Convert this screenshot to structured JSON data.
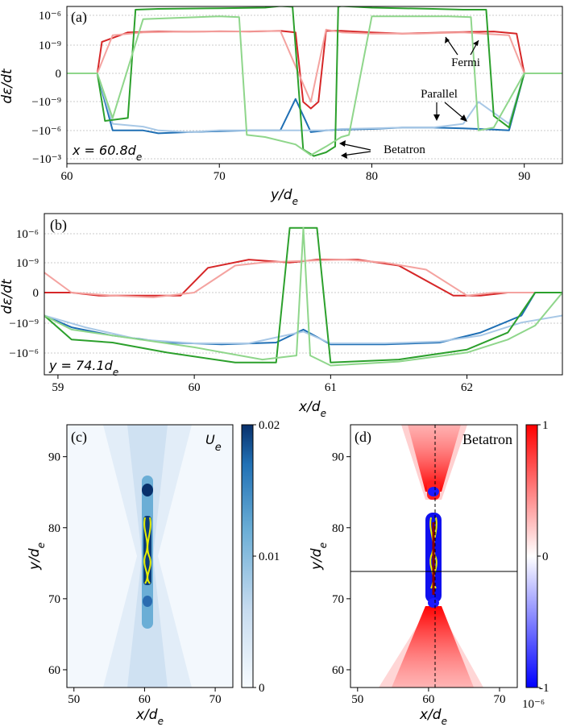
{
  "chart_data": [
    {
      "panel": "(a)",
      "type": "line",
      "xlabel": "y/d_e",
      "ylabel": "dε/dt",
      "yscale": "symlog",
      "xlim": [
        60,
        92.5
      ],
      "xticks": [
        60,
        70,
        80,
        90
      ],
      "yticks": [
        "10^-6",
        "10^-9",
        "0",
        "-10^-9",
        "-10^-6",
        "-10^-3"
      ],
      "inset_text": "x = 60.8d_e",
      "annotations": [
        "Fermi",
        "Parallel",
        "Betatron"
      ],
      "grid": "horizontal dotted",
      "series": [
        {
          "name": "Fermi",
          "color": "#d62728",
          "x": [
            60,
            62,
            62.3,
            64,
            66,
            68,
            70,
            72,
            74,
            75,
            75.5,
            76,
            76.5,
            77,
            78,
            80,
            82,
            84,
            86,
            88,
            89.5,
            90,
            92.5
          ],
          "y": [
            0,
            0,
            2e-09,
            2e-08,
            2.5e-08,
            2.4e-08,
            2.6e-08,
            2.5e-08,
            3e-08,
            2e-08,
            -1e-09,
            -5e-09,
            -1e-09,
            3e-08,
            3e-08,
            2e-08,
            1.5e-08,
            1.8e-08,
            2.2e-08,
            2.5e-08,
            1.5e-08,
            0,
            0
          ]
        },
        {
          "name": "Fermi (light)",
          "color": "#f4a3a0",
          "x": [
            60,
            62,
            63,
            65,
            68,
            71,
            74,
            76,
            77,
            78,
            80,
            83,
            86,
            89,
            90,
            92.5
          ],
          "y": [
            0,
            0,
            1e-08,
            2e-08,
            2.5e-08,
            2.5e-08,
            3e-08,
            -1e-09,
            4e-08,
            2e-08,
            1.5e-08,
            1.5e-08,
            2e-08,
            1e-08,
            0,
            0
          ]
        },
        {
          "name": "Parallel",
          "color": "#1f6fb4",
          "x": [
            60,
            62,
            63,
            64,
            65,
            66,
            68,
            70,
            72,
            74,
            75,
            76,
            77,
            78,
            80,
            82,
            84,
            86,
            88,
            89,
            90,
            92.5
          ],
          "y": [
            0,
            0,
            -1e-06,
            -1e-06,
            -1e-06,
            -2e-06,
            -1.5e-06,
            -1.2e-06,
            -1e-06,
            -1e-06,
            -5e-10,
            -1.5e-06,
            -1e-06,
            -8e-07,
            -7e-07,
            -5e-07,
            -5e-07,
            -6e-07,
            -8e-07,
            -1e-06,
            0,
            0
          ]
        },
        {
          "name": "Parallel (light)",
          "color": "#a8c8e6",
          "x": [
            60,
            62,
            63,
            65,
            66,
            68,
            70,
            72,
            74,
            76,
            77,
            78,
            80,
            82,
            84,
            86,
            87,
            89,
            90,
            92.5
          ],
          "y": [
            0,
            0,
            -2e-07,
            -4e-07,
            -1e-06,
            -1.5e-06,
            -1e-06,
            -1e-06,
            -1e-06,
            -1e-06,
            -1e-06,
            -7e-07,
            -6e-07,
            -5e-07,
            -5e-07,
            -2e-07,
            -1e-09,
            -2e-07,
            0,
            0
          ]
        },
        {
          "name": "Betatron",
          "color": "#2ca02c",
          "x": [
            60,
            62,
            62.5,
            64,
            64.5,
            66,
            70,
            73,
            74,
            74.8,
            75.5,
            76.2,
            77,
            77.6,
            77.8,
            78,
            80,
            84,
            86,
            87.5,
            88,
            89,
            90,
            92.5
          ],
          "y": [
            0,
            0,
            -1e-07,
            -5e-08,
            5e-06,
            6e-06,
            7e-06,
            8e-06,
            1.2e-05,
            1e-05,
            -0.0001,
            -0.0005,
            -0.0002,
            -5e-05,
            1e-05,
            1.2e-05,
            8e-06,
            6e-06,
            5e-06,
            5e-06,
            -3e-08,
            -5e-07,
            0,
            0
          ]
        },
        {
          "name": "Betatron (light)",
          "color": "#8fd68b",
          "x": [
            60,
            62,
            63,
            65,
            70,
            71.3,
            71.8,
            73,
            75,
            76,
            77,
            78,
            78.5,
            80,
            85,
            86.5,
            87,
            88,
            90,
            92.5
          ],
          "y": [
            0,
            0,
            -5e-08,
            5e-07,
            1e-06,
            8e-07,
            -3e-06,
            -5e-06,
            -3e-05,
            -0.0004,
            -5e-05,
            -5e-06,
            -3e-06,
            1e-06,
            1e-06,
            8e-07,
            -1e-06,
            -5e-07,
            0,
            0
          ]
        }
      ]
    },
    {
      "panel": "(b)",
      "type": "line",
      "xlabel": "x/d_e",
      "ylabel": "dε/dt",
      "yscale": "symlog",
      "xlim": [
        58.9,
        62.7
      ],
      "xticks": [
        59,
        60,
        61,
        62
      ],
      "yticks": [
        "10^-6",
        "10^-9",
        "0",
        "-10^-9",
        "-10^-6"
      ],
      "inset_text": "y = 74.1d_e",
      "grid": "horizontal dotted",
      "series": [
        {
          "name": "Fermi",
          "color": "#d62728",
          "x": [
            58.9,
            59.1,
            59.3,
            59.6,
            59.9,
            60.1,
            60.4,
            60.7,
            60.9,
            61.2,
            61.5,
            61.9,
            62.1,
            62.3,
            62.5,
            62.7
          ],
          "y": [
            0,
            0,
            -2e-12,
            -2e-12,
            -2e-12,
            3e-10,
            2e-09,
            1e-09,
            2e-09,
            2e-09,
            5e-10,
            -2e-12,
            -2e-12,
            -1e-12,
            0,
            0
          ]
        },
        {
          "name": "Fermi (light)",
          "color": "#f4a3a0",
          "x": [
            58.9,
            59.1,
            59.4,
            59.7,
            60,
            60.3,
            60.5,
            60.8,
            61.1,
            61.4,
            61.7,
            62,
            62.2,
            62.4,
            62.5,
            62.7
          ],
          "y": [
            1e-10,
            -1e-12,
            -2e-12,
            -3e-12,
            -1e-12,
            5e-10,
            1e-09,
            1.5e-09,
            2e-09,
            1e-09,
            2e-10,
            -2e-12,
            -1e-12,
            0,
            0,
            0
          ]
        },
        {
          "name": "Parallel",
          "color": "#1f6fb4",
          "x": [
            58.9,
            59.1,
            59.4,
            59.8,
            60.2,
            60.6,
            60.8,
            61,
            61.4,
            61.8,
            62.1,
            62.4,
            62.5,
            62.7
          ],
          "y": [
            -2e-10,
            -3e-09,
            -2e-08,
            -1e-07,
            -1.5e-07,
            -1e-07,
            -5e-09,
            -1.5e-07,
            -1.5e-07,
            -1e-07,
            -1e-08,
            -2e-10,
            0,
            0
          ]
        },
        {
          "name": "Parallel (light)",
          "color": "#a8c8e6",
          "x": [
            58.9,
            59.2,
            59.6,
            60,
            60.4,
            60.8,
            61,
            61.4,
            61.8,
            62.1,
            62.4,
            62.7
          ],
          "y": [
            -2e-10,
            -3e-09,
            -5e-08,
            -1.2e-07,
            -1.2e-07,
            -8e-09,
            -1.2e-07,
            -1.2e-07,
            -8e-08,
            -2e-08,
            -1e-09,
            -2e-10
          ]
        },
        {
          "name": "Betatron",
          "color": "#2ca02c",
          "x": [
            58.9,
            59.1,
            59.4,
            59.8,
            60.3,
            60.6,
            60.7,
            60.9,
            61,
            61.5,
            62,
            62.3,
            62.5,
            62.7
          ],
          "y": [
            -2e-10,
            -5e-08,
            -1e-07,
            -1e-06,
            -1e-05,
            -1e-05,
            3e-06,
            3e-06,
            -1e-05,
            -5e-06,
            -5e-07,
            -1e-08,
            0,
            0
          ]
        },
        {
          "name": "Betatron (light)",
          "color": "#8fd68b",
          "x": [
            58.9,
            59.1,
            59.4,
            60,
            60.5,
            60.75,
            60.8,
            60.85,
            61,
            61.5,
            62,
            62.3,
            62.5,
            62.7
          ],
          "y": [
            -2e-10,
            -5e-09,
            -2e-08,
            -3e-07,
            -5e-06,
            -2e-06,
            3e-06,
            -2e-06,
            -2e-05,
            -8e-06,
            -1e-06,
            -5e-08,
            -2e-09,
            0
          ]
        }
      ]
    },
    {
      "panel": "(c)",
      "type": "heatmap",
      "title": "U_e",
      "xlabel": "x/d_e",
      "ylabel": "y/d_e",
      "xlim": [
        49,
        72.5
      ],
      "ylim": [
        57.5,
        94.5
      ],
      "xticks": [
        50,
        60,
        70
      ],
      "yticks": [
        60,
        70,
        80,
        90
      ],
      "colorbar": {
        "min": 0,
        "max": 0.02,
        "ticks": [
          "0",
          "0.01",
          "0.02"
        ],
        "colormap": "Blues"
      }
    },
    {
      "panel": "(d)",
      "type": "heatmap",
      "title": "Betatron",
      "xlabel": "x/d_e",
      "ylabel": "y/d_e",
      "xlim": [
        49,
        72.5
      ],
      "ylim": [
        57.5,
        94.5
      ],
      "xticks": [
        50,
        60,
        70
      ],
      "yticks": [
        60,
        70,
        80,
        90
      ],
      "cut_lines": {
        "vertical_x": 60.8,
        "horizontal_y": 74.1
      },
      "colorbar": {
        "min": -1,
        "max": 1,
        "ticks": [
          "-1",
          "0",
          "1"
        ],
        "multiplier": "10^-6",
        "colormap": "bwr"
      }
    }
  ],
  "labels": {
    "a": "(a)",
    "b": "(b)",
    "c": "(c)",
    "d": "(d)",
    "ylabel_a": "dε/dt",
    "ylabel_b": "dε/dt",
    "xlabel_a": "y/d",
    "xlabel_b": "x/d",
    "xlabel_c": "x/d",
    "xlabel_d": "x/d",
    "ylabel_c": "y/d",
    "ylabel_d": "y/d",
    "sub_e": "e",
    "inset_a": "x = 60.8d",
    "inset_b": "y = 74.1d",
    "title_c": "U",
    "title_d": "Betatron",
    "fermi": "Fermi",
    "parallel": "Parallel",
    "betatron": "Betatron",
    "cb_c": [
      "0.02",
      "0.01",
      "0"
    ],
    "cb_d": [
      "1",
      "0",
      "-1"
    ],
    "cb_d_mult": "10⁻⁶"
  }
}
